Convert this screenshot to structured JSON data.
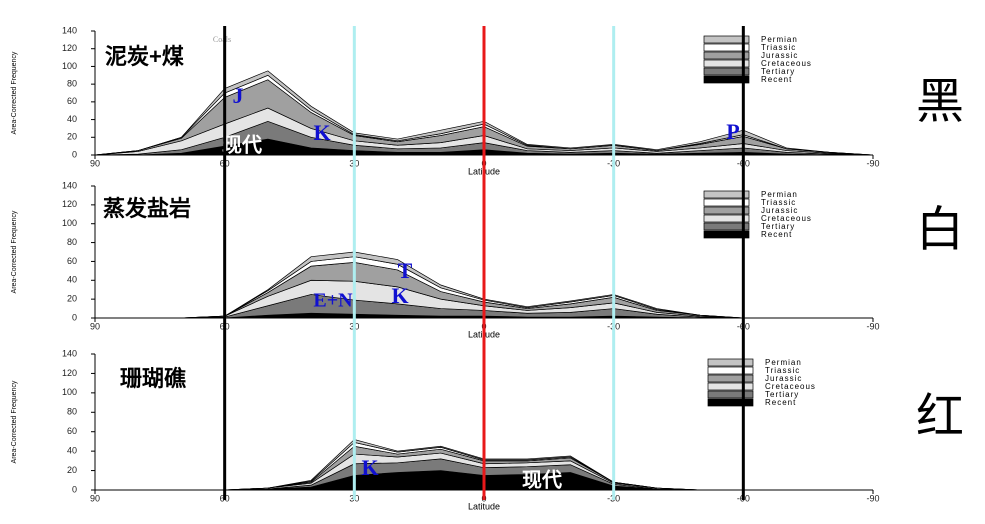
{
  "chart_data": [
    {
      "type": "area",
      "stacked": true,
      "title": "泥炭+煤",
      "xlabel": "Latitude",
      "ylabel": "Area-Corrected Frequency",
      "x": [
        90,
        80,
        70,
        60,
        50,
        40,
        30,
        20,
        10,
        0,
        -10,
        -20,
        -30,
        -40,
        -50,
        -60,
        -70,
        -80,
        -90
      ],
      "xlim": [
        90,
        -90
      ],
      "xticks": [
        90,
        60,
        30,
        0,
        -30,
        -60,
        -90
      ],
      "ylim": [
        0,
        140
      ],
      "yticks": [
        0,
        20,
        40,
        60,
        80,
        100,
        120,
        140
      ],
      "annotations": [
        "Coals",
        "J",
        "K",
        "现代",
        "P"
      ],
      "series": [
        {
          "name": "Recent",
          "color": "#000000",
          "values": [
            0,
            0,
            2,
            10,
            18,
            8,
            5,
            3,
            3,
            6,
            2,
            1,
            2,
            1,
            2,
            3,
            1,
            0,
            0
          ]
        },
        {
          "name": "Tertiary",
          "color": "#7a7a7a",
          "values": [
            0,
            1,
            4,
            10,
            20,
            12,
            6,
            4,
            5,
            8,
            3,
            2,
            3,
            1,
            3,
            5,
            2,
            1,
            0
          ]
        },
        {
          "name": "Cretaceous",
          "color": "#e4e4e4",
          "values": [
            0,
            3,
            10,
            15,
            15,
            10,
            5,
            4,
            6,
            8,
            2,
            2,
            3,
            2,
            3,
            5,
            2,
            1,
            0
          ]
        },
        {
          "name": "Jurassic",
          "color": "#a0a0a0",
          "values": [
            0,
            1,
            3,
            30,
            32,
            18,
            6,
            4,
            8,
            10,
            3,
            2,
            3,
            1,
            4,
            8,
            2,
            1,
            0
          ]
        },
        {
          "name": "Triassic",
          "color": "#ffffff",
          "values": [
            0,
            0,
            1,
            5,
            5,
            3,
            1,
            1,
            2,
            3,
            1,
            0,
            0,
            0,
            1,
            2,
            0,
            0,
            0
          ]
        },
        {
          "name": "Permian",
          "color": "#c4c4c4",
          "values": [
            0,
            0,
            0,
            5,
            5,
            4,
            2,
            2,
            4,
            3,
            1,
            1,
            1,
            1,
            2,
            5,
            1,
            0,
            0
          ]
        }
      ]
    },
    {
      "type": "area",
      "stacked": true,
      "title": "蒸发盐岩",
      "xlabel": "Latitude",
      "ylabel": "Area-Corrected Frequency",
      "x": [
        90,
        80,
        70,
        60,
        50,
        40,
        30,
        20,
        10,
        0,
        -10,
        -20,
        -30,
        -40,
        -50,
        -60,
        -70,
        -80,
        -90
      ],
      "xlim": [
        90,
        -90
      ],
      "xticks": [
        90,
        60,
        30,
        0,
        -30,
        -60,
        -90
      ],
      "ylim": [
        0,
        140
      ],
      "yticks": [
        0,
        20,
        40,
        60,
        80,
        100,
        120,
        140
      ],
      "annotations": [
        "T",
        "K",
        "E+N"
      ],
      "series": [
        {
          "name": "Recent",
          "color": "#000000",
          "values": [
            0,
            0,
            0,
            0,
            3,
            5,
            4,
            3,
            2,
            2,
            1,
            1,
            2,
            1,
            0,
            0,
            0,
            0,
            0
          ]
        },
        {
          "name": "Tertiary",
          "color": "#7a7a7a",
          "values": [
            0,
            0,
            0,
            1,
            10,
            20,
            15,
            12,
            8,
            6,
            4,
            5,
            8,
            3,
            1,
            0,
            0,
            0,
            0
          ]
        },
        {
          "name": "Cretaceous",
          "color": "#e4e4e4",
          "values": [
            0,
            0,
            0,
            1,
            10,
            15,
            20,
            18,
            10,
            5,
            3,
            5,
            6,
            2,
            1,
            0,
            0,
            0,
            0
          ]
        },
        {
          "name": "Jurassic",
          "color": "#a0a0a0",
          "values": [
            0,
            0,
            0,
            0,
            4,
            15,
            20,
            18,
            8,
            4,
            2,
            4,
            6,
            2,
            1,
            0,
            0,
            0,
            0
          ]
        },
        {
          "name": "Triassic",
          "color": "#ffffff",
          "values": [
            0,
            0,
            0,
            0,
            2,
            5,
            6,
            6,
            4,
            2,
            1,
            2,
            2,
            1,
            0,
            0,
            0,
            0,
            0
          ]
        },
        {
          "name": "Permian",
          "color": "#c4c4c4",
          "values": [
            0,
            0,
            0,
            0,
            1,
            5,
            5,
            5,
            3,
            1,
            1,
            1,
            1,
            1,
            0,
            0,
            0,
            0,
            0
          ]
        }
      ]
    },
    {
      "type": "area",
      "stacked": true,
      "title": "珊瑚礁",
      "xlabel": "Latitude",
      "ylabel": "Area-Corrected Frequency",
      "x": [
        90,
        80,
        70,
        60,
        50,
        40,
        30,
        20,
        10,
        0,
        -10,
        -20,
        -30,
        -40,
        -50,
        -60,
        -70,
        -80,
        -90
      ],
      "xlim": [
        90,
        -90
      ],
      "xticks": [
        90,
        60,
        30,
        0,
        -30,
        -60,
        -90
      ],
      "ylim": [
        0,
        140
      ],
      "yticks": [
        0,
        20,
        40,
        60,
        80,
        100,
        120,
        140
      ],
      "annotations": [
        "K",
        "现代"
      ],
      "series": [
        {
          "name": "Recent",
          "color": "#000000",
          "values": [
            0,
            0,
            0,
            0,
            1,
            3,
            15,
            18,
            20,
            15,
            16,
            18,
            4,
            1,
            0,
            0,
            0,
            0,
            0
          ]
        },
        {
          "name": "Tertiary",
          "color": "#7a7a7a",
          "values": [
            0,
            0,
            0,
            0,
            0,
            2,
            12,
            10,
            12,
            8,
            8,
            8,
            2,
            0,
            0,
            0,
            0,
            0,
            0
          ]
        },
        {
          "name": "Cretaceous",
          "color": "#e4e4e4",
          "values": [
            0,
            0,
            0,
            0,
            1,
            2,
            10,
            6,
            6,
            4,
            4,
            4,
            1,
            1,
            0,
            0,
            0,
            0,
            0
          ]
        },
        {
          "name": "Jurassic",
          "color": "#a0a0a0",
          "values": [
            0,
            0,
            0,
            0,
            0,
            1,
            8,
            3,
            4,
            3,
            2,
            3,
            1,
            0,
            0,
            0,
            0,
            0,
            0
          ]
        },
        {
          "name": "Triassic",
          "color": "#ffffff",
          "values": [
            0,
            0,
            0,
            0,
            0,
            1,
            4,
            2,
            2,
            1,
            1,
            1,
            0,
            0,
            0,
            0,
            0,
            0,
            0
          ]
        },
        {
          "name": "Permian",
          "color": "#c4c4c4",
          "values": [
            0,
            0,
            0,
            0,
            0,
            1,
            3,
            1,
            1,
            1,
            1,
            1,
            0,
            0,
            0,
            0,
            0,
            0,
            0
          ]
        }
      ]
    }
  ],
  "overlay_lines": [
    {
      "x": 60,
      "color": "#000000"
    },
    {
      "x": -60,
      "color": "#000000"
    },
    {
      "x": 30,
      "color": "#aeeef0"
    },
    {
      "x": -30,
      "color": "#aeeef0"
    },
    {
      "x": 0,
      "color": "#e8181a"
    }
  ],
  "side_labels": [
    "黑",
    "白",
    "红"
  ]
}
